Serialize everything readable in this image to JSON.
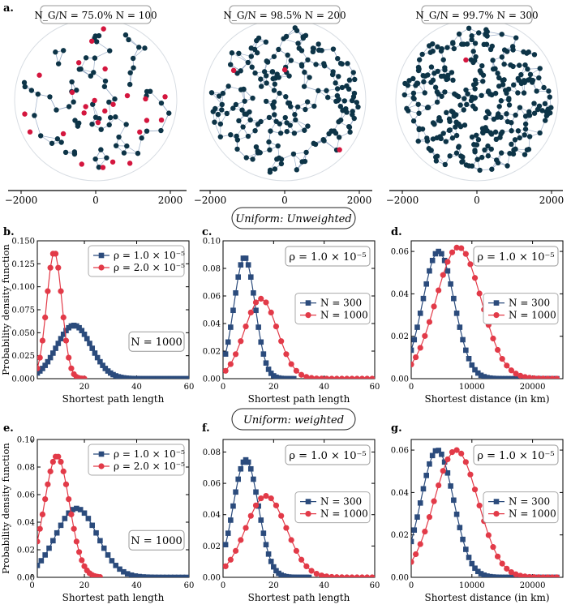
{
  "colors": {
    "blue": "#2b4b7c",
    "red": "#e23a48",
    "node": "#0d3447",
    "node_red": "#d4163e",
    "edge": "#8da2bf",
    "circle": "#d8dde3"
  },
  "section_labels": {
    "unweighted": "Uniform: Unweighted",
    "weighted": "Uniform: weighted"
  },
  "networks": [
    {
      "letter": "a.",
      "title": "N_G/N = 75.0%  N = 100",
      "n_nodes": 100,
      "giant_fraction": 0.75,
      "xticks": [
        -2000,
        0,
        2000
      ]
    },
    {
      "letter": "",
      "title": "N_G/N = 98.5%  N = 200",
      "n_nodes": 200,
      "giant_fraction": 0.985,
      "xticks": [
        -2000,
        0,
        2000
      ]
    },
    {
      "letter": "",
      "title": "N_G/N = 99.7%  N = 300",
      "n_nodes": 300,
      "giant_fraction": 0.997,
      "xticks": [
        -2000,
        0,
        2000
      ]
    }
  ],
  "chart_data": [
    {
      "letter": "b.",
      "type": "line",
      "xlabel": "Shortest path length",
      "ylabel": "Probability density function",
      "xlim": [
        2,
        60
      ],
      "ylim": [
        0,
        0.15
      ],
      "xticks": [
        20,
        40,
        60
      ],
      "yticks": [
        0.0,
        0.025,
        0.05,
        0.075,
        0.1,
        0.125,
        0.15
      ],
      "ydec": 3,
      "legend_pos": "top-right",
      "annotation": "N = 1000",
      "annotation_pos": "middle-right",
      "series": [
        {
          "name": "ρ = 1.0 × 10⁻⁵",
          "marker": "square",
          "color": "blue",
          "mu": 16,
          "sigma": 6.6,
          "peak": 0.058,
          "step": 1,
          "x0": 2,
          "x1": 60
        },
        {
          "name": "ρ = 2.0 × 10⁻⁵",
          "marker": "circle",
          "color": "red",
          "mu": 8.5,
          "sigma": 2.9,
          "peak": 0.138,
          "step": 1,
          "x0": 2,
          "x1": 20
        }
      ]
    },
    {
      "letter": "c.",
      "type": "line",
      "xlabel": "Shortest path length",
      "ylabel": "",
      "xlim": [
        0,
        60
      ],
      "ylim": [
        0,
        0.1
      ],
      "xticks": [
        0,
        20,
        40,
        60
      ],
      "yticks": [
        0.0,
        0.02,
        0.04,
        0.06,
        0.08,
        0.1
      ],
      "ydec": 2,
      "legend_pos": "middle-right",
      "annotation": "ρ = 1.0 × 10⁻⁵",
      "annotation_pos": "top-right",
      "series": [
        {
          "name": "N = 300",
          "marker": "square",
          "color": "blue",
          "mu": 8.5,
          "sigma": 4.2,
          "peak": 0.088,
          "step": 1,
          "x0": 1,
          "x1": 28
        },
        {
          "name": "N = 1000",
          "marker": "circle",
          "color": "red",
          "mu": 15,
          "sigma": 6.5,
          "peak": 0.058,
          "step": 2,
          "x0": 1,
          "x1": 59
        }
      ]
    },
    {
      "letter": "d.",
      "type": "line",
      "xlabel": "Shortest distance (in km)",
      "ylabel": "",
      "xlim": [
        0,
        25000
      ],
      "ylim": [
        0,
        0.065
      ],
      "xticks": [
        0,
        10000,
        20000
      ],
      "yticks": [
        0.0,
        0.02,
        0.04,
        0.06
      ],
      "ydec": 2,
      "legend_pos": "middle-right",
      "annotation": "ρ = 1.0 × 10⁻⁵",
      "annotation_pos": "top-right",
      "series": [
        {
          "name": "N = 300",
          "marker": "square",
          "color": "blue",
          "mu": 4500,
          "sigma": 2600,
          "peak": 0.06,
          "step": 500,
          "x0": 0,
          "x1": 24000
        },
        {
          "name": "N = 1000",
          "marker": "circle",
          "color": "red",
          "mu": 7800,
          "sigma": 3700,
          "peak": 0.062,
          "step": 750,
          "x0": 0,
          "x1": 24000
        }
      ]
    },
    {
      "letter": "e.",
      "type": "line",
      "xlabel": "Shortest path length",
      "ylabel": "Probability density function",
      "xlim": [
        2,
        60
      ],
      "ylim": [
        0,
        0.1
      ],
      "xticks": [
        0,
        20,
        40,
        60
      ],
      "yticks": [
        0.0,
        0.02,
        0.04,
        0.06,
        0.08,
        0.1
      ],
      "ydec": 2,
      "legend_pos": "top-right",
      "annotation": "N = 1000",
      "annotation_pos": "middle-right",
      "series": [
        {
          "name": "ρ = 1.0 × 10⁻⁵",
          "marker": "square",
          "color": "blue",
          "mu": 17,
          "sigma": 8.0,
          "peak": 0.05,
          "step": 1.5,
          "x0": 2,
          "x1": 60
        },
        {
          "name": "ρ = 2.0 × 10⁻⁵",
          "marker": "circle",
          "color": "red",
          "mu": 9.5,
          "sigma": 4.8,
          "peak": 0.088,
          "step": 1,
          "x0": 2,
          "x1": 26
        }
      ]
    },
    {
      "letter": "f.",
      "type": "line",
      "xlabel": "Shortest path length",
      "ylabel": "",
      "xlim": [
        0,
        60
      ],
      "ylim": [
        0,
        0.088
      ],
      "xticks": [
        0,
        20,
        40,
        60
      ],
      "yticks": [
        0.0,
        0.02,
        0.04,
        0.06,
        0.08
      ],
      "ydec": 2,
      "legend_pos": "middle-right",
      "annotation": "ρ = 1.0 × 10⁻⁵",
      "annotation_pos": "top-right",
      "series": [
        {
          "name": "N = 300",
          "marker": "square",
          "color": "blue",
          "mu": 9,
          "sigma": 5.0,
          "peak": 0.075,
          "step": 1,
          "x0": 1,
          "x1": 34
        },
        {
          "name": "N = 1000",
          "marker": "circle",
          "color": "red",
          "mu": 17,
          "sigma": 8.0,
          "peak": 0.052,
          "step": 2,
          "x0": 1,
          "x1": 59
        }
      ]
    },
    {
      "letter": "g.",
      "type": "line",
      "xlabel": "Shortest distance (in km)",
      "ylabel": "",
      "xlim": [
        0,
        25000
      ],
      "ylim": [
        0,
        0.065
      ],
      "xticks": [
        0,
        10000,
        20000
      ],
      "yticks": [
        0.0,
        0.02,
        0.04,
        0.06
      ],
      "ydec": 2,
      "legend_pos": "middle-right",
      "annotation": "ρ = 1.0 × 10⁻⁵",
      "annotation_pos": "top-right",
      "series": [
        {
          "name": "N = 300",
          "marker": "square",
          "color": "blue",
          "mu": 4300,
          "sigma": 2700,
          "peak": 0.06,
          "step": 500,
          "x0": 0,
          "x1": 24000
        },
        {
          "name": "N = 1000",
          "marker": "circle",
          "color": "red",
          "mu": 7400,
          "sigma": 3600,
          "peak": 0.06,
          "step": 750,
          "x0": 0,
          "x1": 24000
        }
      ]
    }
  ]
}
